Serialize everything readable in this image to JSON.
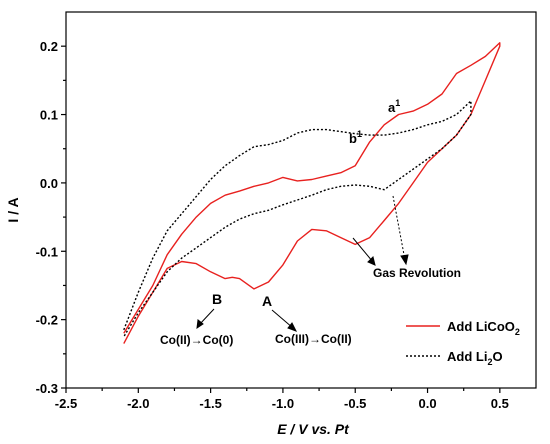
{
  "chart_data": {
    "type": "line",
    "xlabel": "E / V vs. Pt",
    "ylabel": "I / A",
    "xlim": [
      -2.5,
      0.75
    ],
    "ylim": [
      -0.3,
      0.25
    ],
    "xticks": [
      -2.5,
      -2.0,
      -1.5,
      -1.0,
      -0.5,
      0.0,
      0.5
    ],
    "yticks": [
      -0.3,
      -0.2,
      -0.1,
      0.0,
      0.1,
      0.2
    ],
    "xtick_labels": [
      "-2.5",
      "-2.0",
      "-1.5",
      "-1.0",
      "-0.5",
      "0.0",
      "0.5"
    ],
    "ytick_labels": [
      "-0.3",
      "-0.2",
      "-0.1",
      "0.0",
      "0.1",
      "0.2"
    ],
    "legend_position": "bottom-right",
    "series": [
      {
        "name": "Add LiCoO2",
        "color": "#e8211f",
        "style": "solid",
        "x": [
          -2.1,
          -2.0,
          -1.9,
          -1.8,
          -1.7,
          -1.6,
          -1.5,
          -1.4,
          -1.3,
          -1.2,
          -1.1,
          -1.0,
          -0.9,
          -0.8,
          -0.7,
          -0.6,
          -0.5,
          -0.4,
          -0.3,
          -0.2,
          -0.1,
          0.0,
          0.1,
          0.2,
          0.3,
          0.4,
          0.5,
          0.5,
          0.4,
          0.3,
          0.2,
          0.1,
          0.0,
          -0.1,
          -0.2,
          -0.3,
          -0.4,
          -0.5,
          -0.6,
          -0.7,
          -0.8,
          -0.9,
          -1.0,
          -1.1,
          -1.2,
          -1.3,
          -1.35,
          -1.4,
          -1.5,
          -1.6,
          -1.7,
          -1.8,
          -1.9,
          -2.0,
          -2.1
        ],
        "y": [
          -0.22,
          -0.185,
          -0.15,
          -0.105,
          -0.075,
          -0.05,
          -0.03,
          -0.018,
          -0.012,
          -0.005,
          0.0,
          0.008,
          0.003,
          0.005,
          0.01,
          0.015,
          0.025,
          0.06,
          0.085,
          0.1,
          0.105,
          0.115,
          0.13,
          0.16,
          0.172,
          0.185,
          0.205,
          0.2,
          0.15,
          0.1,
          0.07,
          0.05,
          0.03,
          0.0,
          -0.03,
          -0.055,
          -0.08,
          -0.09,
          -0.08,
          -0.07,
          -0.068,
          -0.085,
          -0.12,
          -0.145,
          -0.155,
          -0.14,
          -0.138,
          -0.14,
          -0.13,
          -0.118,
          -0.115,
          -0.125,
          -0.16,
          -0.195,
          -0.235
        ]
      },
      {
        "name": "Add Li2O",
        "color": "#000000",
        "style": "dotted",
        "x": [
          -2.1,
          -2.0,
          -1.9,
          -1.8,
          -1.7,
          -1.6,
          -1.5,
          -1.4,
          -1.3,
          -1.2,
          -1.1,
          -1.0,
          -0.9,
          -0.8,
          -0.7,
          -0.6,
          -0.5,
          -0.4,
          -0.3,
          -0.2,
          -0.1,
          0.0,
          0.1,
          0.2,
          0.3,
          0.3,
          0.2,
          0.1,
          0.0,
          -0.1,
          -0.2,
          -0.3,
          -0.4,
          -0.5,
          -0.6,
          -0.7,
          -0.8,
          -0.9,
          -1.0,
          -1.1,
          -1.2,
          -1.3,
          -1.4,
          -1.5,
          -1.6,
          -1.7,
          -1.8,
          -1.9,
          -2.0,
          -2.1
        ],
        "y": [
          -0.215,
          -0.16,
          -0.11,
          -0.07,
          -0.045,
          -0.02,
          0.005,
          0.025,
          0.04,
          0.053,
          0.056,
          0.062,
          0.073,
          0.078,
          0.078,
          0.075,
          0.072,
          0.07,
          0.07,
          0.073,
          0.078,
          0.085,
          0.09,
          0.1,
          0.12,
          0.1,
          0.07,
          0.05,
          0.035,
          0.02,
          0.005,
          -0.01,
          -0.005,
          -0.003,
          -0.005,
          -0.01,
          -0.018,
          -0.025,
          -0.032,
          -0.04,
          -0.045,
          -0.053,
          -0.065,
          -0.08,
          -0.095,
          -0.11,
          -0.13,
          -0.16,
          -0.19,
          -0.225
        ]
      }
    ],
    "annotations": {
      "a1": "a",
      "a1_sup": "1",
      "b1": "b",
      "b1_sup": "1",
      "A": "A",
      "B": "B",
      "gas": "Gas Revolution",
      "co_b": "Co(II)→Co(0)",
      "co_a": "Co(III)→Co(II)"
    }
  }
}
